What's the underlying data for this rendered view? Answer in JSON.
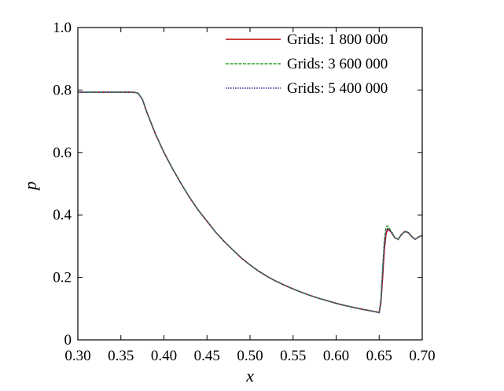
{
  "chart_data": {
    "type": "line",
    "title": "",
    "xlabel": "x",
    "ylabel": "p",
    "xlim": [
      0.3,
      0.7
    ],
    "ylim": [
      0,
      1.0
    ],
    "x_ticks": [
      "0.30",
      "0.35",
      "0.40",
      "0.45",
      "0.50",
      "0.55",
      "0.60",
      "0.65",
      "0.70"
    ],
    "y_ticks": [
      "0",
      "0.2",
      "0.4",
      "0.6",
      "0.8",
      "1.0"
    ],
    "grid": false,
    "legend_position": "top-right",
    "series": [
      {
        "name": "Grids: 1 800 000",
        "color": "#c00000",
        "dash": "solid",
        "x": [
          0.3,
          0.34,
          0.365,
          0.37,
          0.375,
          0.38,
          0.39,
          0.4,
          0.41,
          0.42,
          0.43,
          0.44,
          0.45,
          0.46,
          0.47,
          0.48,
          0.49,
          0.5,
          0.51,
          0.52,
          0.53,
          0.54,
          0.55,
          0.56,
          0.57,
          0.58,
          0.59,
          0.6,
          0.61,
          0.62,
          0.63,
          0.64,
          0.65,
          0.652,
          0.654,
          0.656,
          0.658,
          0.66,
          0.664,
          0.668,
          0.672,
          0.676,
          0.68,
          0.684,
          0.688,
          0.692,
          0.696,
          0.7
        ],
        "y": [
          0.793,
          0.793,
          0.793,
          0.79,
          0.77,
          0.73,
          0.66,
          0.6,
          0.548,
          0.5,
          0.455,
          0.415,
          0.38,
          0.345,
          0.315,
          0.288,
          0.262,
          0.24,
          0.22,
          0.203,
          0.188,
          0.175,
          0.163,
          0.152,
          0.142,
          0.133,
          0.125,
          0.117,
          0.11,
          0.104,
          0.098,
          0.093,
          0.088,
          0.12,
          0.2,
          0.29,
          0.34,
          0.355,
          0.345,
          0.327,
          0.322,
          0.338,
          0.347,
          0.343,
          0.33,
          0.322,
          0.33,
          0.334
        ]
      },
      {
        "name": "Grids: 3 600 000",
        "color": "#2ca02c",
        "dash": "dash",
        "x": [
          0.3,
          0.34,
          0.365,
          0.37,
          0.375,
          0.38,
          0.39,
          0.4,
          0.41,
          0.42,
          0.43,
          0.44,
          0.45,
          0.46,
          0.47,
          0.48,
          0.49,
          0.5,
          0.51,
          0.52,
          0.53,
          0.54,
          0.55,
          0.56,
          0.57,
          0.58,
          0.59,
          0.6,
          0.61,
          0.62,
          0.63,
          0.64,
          0.65,
          0.652,
          0.654,
          0.656,
          0.658,
          0.66,
          0.664,
          0.668,
          0.672,
          0.676,
          0.68,
          0.684,
          0.688,
          0.692,
          0.696,
          0.7
        ],
        "y": [
          0.793,
          0.793,
          0.793,
          0.79,
          0.77,
          0.73,
          0.66,
          0.6,
          0.548,
          0.5,
          0.455,
          0.415,
          0.38,
          0.345,
          0.315,
          0.288,
          0.262,
          0.24,
          0.22,
          0.203,
          0.188,
          0.175,
          0.163,
          0.152,
          0.142,
          0.133,
          0.125,
          0.117,
          0.11,
          0.104,
          0.098,
          0.093,
          0.087,
          0.13,
          0.23,
          0.32,
          0.362,
          0.365,
          0.348,
          0.328,
          0.322,
          0.338,
          0.348,
          0.344,
          0.331,
          0.322,
          0.33,
          0.334
        ]
      },
      {
        "name": "Grids: 5 400 000",
        "color": "#3a3a9a",
        "dash": "dot",
        "x": [
          0.3,
          0.34,
          0.365,
          0.37,
          0.375,
          0.38,
          0.39,
          0.4,
          0.41,
          0.42,
          0.43,
          0.44,
          0.45,
          0.46,
          0.47,
          0.48,
          0.49,
          0.5,
          0.51,
          0.52,
          0.53,
          0.54,
          0.55,
          0.56,
          0.57,
          0.58,
          0.59,
          0.6,
          0.61,
          0.62,
          0.63,
          0.64,
          0.65,
          0.652,
          0.654,
          0.656,
          0.658,
          0.66,
          0.664,
          0.668,
          0.672,
          0.676,
          0.68,
          0.684,
          0.688,
          0.692,
          0.696,
          0.7
        ],
        "y": [
          0.793,
          0.793,
          0.793,
          0.79,
          0.77,
          0.73,
          0.66,
          0.6,
          0.548,
          0.5,
          0.455,
          0.415,
          0.38,
          0.345,
          0.315,
          0.288,
          0.262,
          0.24,
          0.22,
          0.203,
          0.188,
          0.175,
          0.163,
          0.152,
          0.142,
          0.133,
          0.125,
          0.117,
          0.11,
          0.104,
          0.098,
          0.093,
          0.087,
          0.125,
          0.215,
          0.305,
          0.35,
          0.357,
          0.346,
          0.327,
          0.321,
          0.337,
          0.347,
          0.343,
          0.33,
          0.322,
          0.33,
          0.334
        ]
      }
    ]
  }
}
